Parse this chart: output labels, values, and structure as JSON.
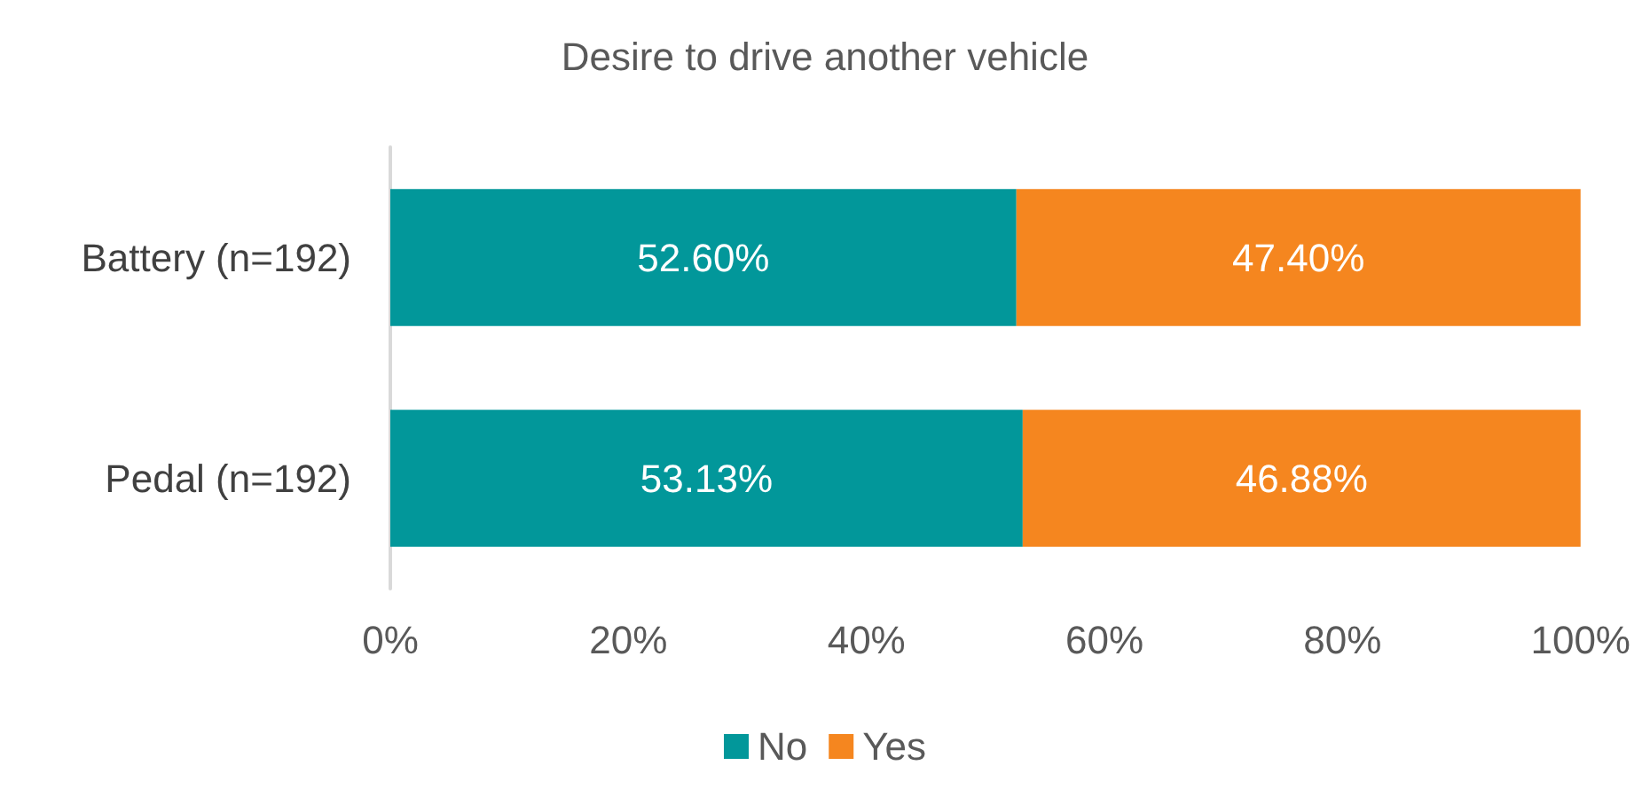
{
  "chart_data": {
    "type": "bar",
    "orientation": "horizontal",
    "stacked": true,
    "title": "Desire to drive another vehicle",
    "categories": [
      "Battery (n=192)",
      "Pedal (n=192)"
    ],
    "series": [
      {
        "name": "No",
        "color": "#02979a",
        "values": [
          52.6,
          53.13
        ],
        "value_labels": [
          "52.60%",
          "53.13%"
        ]
      },
      {
        "name": "Yes",
        "color": "#f5861f",
        "values": [
          47.4,
          46.88
        ],
        "value_labels": [
          "47.40%",
          "46.88%"
        ]
      }
    ],
    "xlim": [
      0,
      100
    ],
    "xticks": [
      {
        "value": 0,
        "label": "0%"
      },
      {
        "value": 20,
        "label": "20%"
      },
      {
        "value": 40,
        "label": "40%"
      },
      {
        "value": 60,
        "label": "60%"
      },
      {
        "value": 80,
        "label": "80%"
      },
      {
        "value": 100,
        "label": "100%"
      }
    ],
    "grid": false,
    "legend": "bottom"
  }
}
